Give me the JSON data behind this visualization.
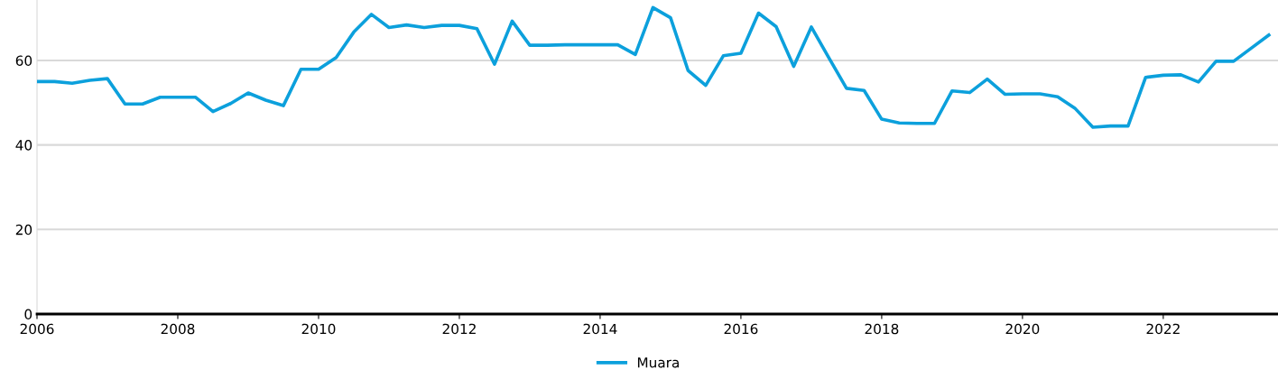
{
  "chart_data": {
    "type": "line",
    "x": [
      2006.0,
      2006.25,
      2006.5,
      2006.75,
      2007.0,
      2007.25,
      2007.5,
      2007.75,
      2008.0,
      2008.25,
      2008.5,
      2008.75,
      2009.0,
      2009.25,
      2009.5,
      2009.75,
      2010.0,
      2010.25,
      2010.5,
      2010.75,
      2011.0,
      2011.25,
      2011.5,
      2011.75,
      2012.0,
      2012.25,
      2012.5,
      2012.75,
      2013.0,
      2013.25,
      2013.5,
      2013.75,
      2014.0,
      2014.25,
      2014.5,
      2014.75,
      2015.0,
      2015.25,
      2015.5,
      2015.75,
      2016.0,
      2016.25,
      2016.5,
      2016.75,
      2017.0,
      2017.25,
      2017.5,
      2017.75,
      2018.0,
      2018.25,
      2018.5,
      2018.75,
      2019.0,
      2019.25,
      2019.5,
      2019.75,
      2020.0,
      2020.25,
      2020.5,
      2020.75,
      2021.0,
      2021.25,
      2021.5,
      2021.75,
      2022.0,
      2022.25,
      2022.5,
      2022.75,
      2023.0,
      2023.25,
      2023.5
    ],
    "series": [
      {
        "name": "Muara",
        "color": "#0ca0dc",
        "values": [
          55.0,
          55.0,
          54.6,
          55.3,
          55.7,
          49.7,
          49.7,
          51.3,
          51.3,
          51.3,
          47.9,
          49.8,
          52.3,
          50.6,
          49.3,
          57.9,
          57.9,
          60.7,
          66.7,
          70.9,
          67.8,
          68.4,
          67.8,
          68.3,
          68.3,
          67.5,
          59.1,
          69.3,
          63.6,
          63.6,
          63.7,
          63.7,
          63.7,
          63.7,
          61.4,
          72.5,
          70.1,
          57.6,
          54.1,
          61.1,
          61.7,
          71.2,
          68.0,
          58.6,
          67.9,
          60.6,
          53.4,
          52.9,
          46.1,
          45.2,
          45.1,
          45.1,
          52.8,
          52.4,
          55.6,
          52.0,
          52.1,
          52.1,
          51.4,
          48.6,
          44.2,
          44.5,
          44.5,
          56.0,
          56.5,
          56.6,
          54.9,
          59.8,
          59.8,
          62.9,
          66.0
        ]
      }
    ],
    "xlim": [
      2006,
      2023.63
    ],
    "ylim": [
      0,
      74.3
    ],
    "xticks": [
      2006,
      2008,
      2010,
      2012,
      2014,
      2016,
      2018,
      2020,
      2022
    ],
    "yticks": [
      0,
      20,
      40,
      60
    ],
    "grid": "y",
    "legend": "bottom",
    "marker": "none",
    "line_style": "solid"
  }
}
